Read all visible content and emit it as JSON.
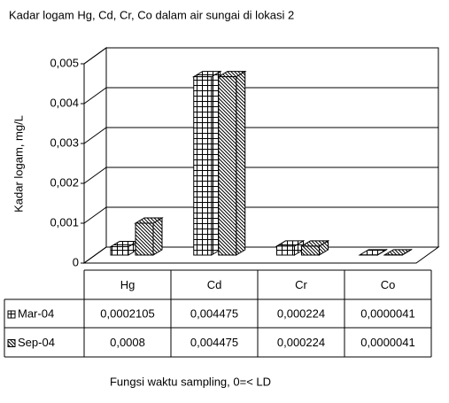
{
  "chart_data": {
    "type": "bar3d",
    "title": "Kadar logam Hg, Cd, Cr, Co dalam air sungai di lokasi 2",
    "y_label": "Kadar logam, mg/L",
    "x_label": "Fungsi waktu sampling, 0=< LD",
    "categories": [
      "Hg",
      "Cd",
      "Cr",
      "Co"
    ],
    "series": [
      {
        "name": "Mar-04",
        "pattern": "grid",
        "values": [
          0.0002105,
          0.004475,
          0.000224,
          4.1e-06
        ],
        "value_labels": [
          "0,0002105",
          "0,004475",
          "0,000224",
          "0,0000041"
        ]
      },
      {
        "name": "Sep-04",
        "pattern": "diagonal",
        "values": [
          0.0008,
          0.004475,
          0.000224,
          4.1e-06
        ],
        "value_labels": [
          "0,0008",
          "0,004475",
          "0,000224",
          "0,0000041"
        ]
      }
    ],
    "ylim": [
      0,
      0.005
    ],
    "yticks": [
      0,
      {
        "value": 0.001,
        "label": "0,001"
      },
      {
        "value": 0.002,
        "label": "0,002"
      },
      {
        "value": 0.003,
        "label": "0,003"
      },
      {
        "value": 0.004,
        "label": "0,004"
      },
      {
        "value": 0.005,
        "label": "0,005"
      }
    ],
    "grid": true,
    "data_table": true
  }
}
